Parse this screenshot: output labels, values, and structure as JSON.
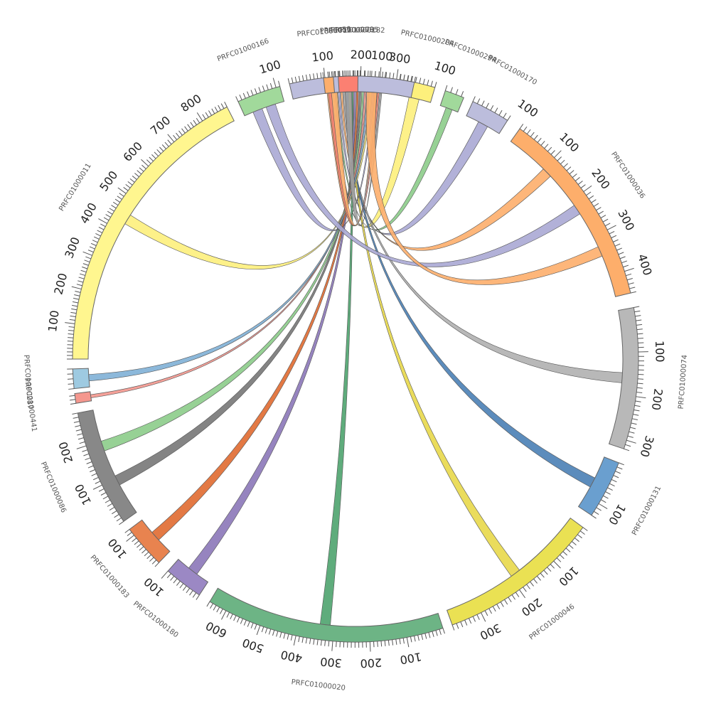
{
  "diagram": {
    "type": "circos",
    "center": "PRFC01000182",
    "segments": [
      {
        "id": "PRFC01000182",
        "label": "PRFC01000182",
        "color": "#9ecae1",
        "size": 110,
        "start_deg": -5.2,
        "end_deg": 6.0,
        "label_ticks": [
          100
        ]
      },
      {
        "id": "PRFC01000204",
        "label": "PRFC01000204",
        "color": "#fdf07c",
        "size": 90,
        "start_deg": 9.0,
        "end_deg": 16.3,
        "label_ticks": [
          100
        ]
      },
      {
        "id": "PRFC01000294",
        "label": "PRFC01000294",
        "color": "#a1d99b",
        "size": 35,
        "start_deg": 18.5,
        "end_deg": 22.5,
        "label_ticks": []
      },
      {
        "id": "PRFC01000170",
        "label": "PRFC01000170",
        "color": "#bcbddc",
        "size": 80,
        "start_deg": 24.5,
        "end_deg": 32.5,
        "label_ticks": [
          100
        ]
      },
      {
        "id": "PRFC01000036",
        "label": "PRFC01000036",
        "color": "#fdae6b",
        "size": 450,
        "start_deg": 35.5,
        "end_deg": 76.5,
        "label_ticks": [
          100,
          200,
          300,
          400
        ]
      },
      {
        "id": "PRFC01000074",
        "label": "PRFC01000074",
        "color": "#b8b8b8",
        "size": 320,
        "start_deg": 79.5,
        "end_deg": 108.5,
        "label_ticks": [
          100,
          200,
          300
        ]
      },
      {
        "id": "PRFC01000131",
        "label": "PRFC01000131",
        "color": "#6a9fcf",
        "size": 130,
        "start_deg": 111.5,
        "end_deg": 123.5,
        "label_ticks": [
          100
        ]
      },
      {
        "id": "PRFC01000046",
        "label": "PRFC01000046",
        "color": "#eae153",
        "size": 370,
        "start_deg": 126.5,
        "end_deg": 160.0,
        "label_ticks": [
          100,
          200,
          300
        ]
      },
      {
        "id": "PRFC01000020",
        "label": "PRFC01000020",
        "color": "#6db485",
        "size": 650,
        "start_deg": 162.0,
        "end_deg": 211.0,
        "label_ticks": [
          100,
          200,
          300,
          400,
          500,
          600
        ]
      },
      {
        "id": "PRFC01000180",
        "label": "PRFC01000180",
        "color": "#9b88c4",
        "size": 100,
        "start_deg": 213.5,
        "end_deg": 221.5,
        "label_ticks": [
          100
        ]
      },
      {
        "id": "PRFC01000183",
        "label": "PRFC01000183",
        "color": "#e8834f",
        "size": 120,
        "start_deg": 224.0,
        "end_deg": 233.0,
        "label_ticks": [
          100
        ]
      },
      {
        "id": "PRFC01000086",
        "label": "PRFC01000086",
        "color": "#888888",
        "size": 280,
        "start_deg": 235.0,
        "end_deg": 259.0,
        "label_ticks": [
          100,
          200
        ]
      },
      {
        "id": "PRFC01000441",
        "label": "PRFC01000441",
        "color": "#f4978e",
        "size": 25,
        "start_deg": 261.0,
        "end_deg": 263.0,
        "label_ticks": []
      },
      {
        "id": "PRFC01000287",
        "label": "PRFC01000287",
        "color": "#9ecae1",
        "size": 40,
        "start_deg": 264.0,
        "end_deg": 268.0,
        "label_ticks": []
      },
      {
        "id": "PRFC01000011",
        "label": "PRFC01000011",
        "color": "#fff68f",
        "size": 880,
        "start_deg": 270.0,
        "end_deg": 333.0,
        "label_ticks": [
          100,
          200,
          300,
          400,
          500,
          600,
          700,
          800
        ]
      },
      {
        "id": "PRFC01000166",
        "label": "PRFC01000166",
        "color": "#a1d99b",
        "size": 110,
        "start_deg": 335.5,
        "end_deg": 344.5,
        "label_ticks": [
          100
        ]
      },
      {
        "id": "PRFC01000065",
        "label": "PRFC01000065",
        "color": "#bcbddc",
        "size": 350,
        "start_deg": 346.5,
        "end_deg": 372.0,
        "label_ticks": [
          100,
          200,
          300
        ]
      },
      {
        "id": "PRFC01000450",
        "label": "PRFC01000450",
        "color": "#fdae6b",
        "size": 20,
        "start_deg": 353.5,
        "end_deg": 355.5,
        "label_ticks": []
      },
      {
        "id": "PRFC01000279",
        "label": "PRFC01000279",
        "color": "#fb8072",
        "size": 40,
        "start_deg": 356.5,
        "end_deg": 360.5,
        "label_ticks": []
      }
    ],
    "links": [
      {
        "source": "PRFC01000182",
        "target": "PRFC01000204",
        "color": "#fdf07c"
      },
      {
        "source": "PRFC01000182",
        "target": "PRFC01000294",
        "color": "#8ccc8a"
      },
      {
        "source": "PRFC01000182",
        "target": "PRFC01000170",
        "color": "#aaa8d4"
      },
      {
        "source": "PRFC01000182",
        "target": "PRFC01000036",
        "color": "#fdae6b"
      },
      {
        "source": "PRFC01000182",
        "target": "PRFC01000074",
        "color": "#b0b0b0"
      },
      {
        "source": "PRFC01000182",
        "target": "PRFC01000131",
        "color": "#4a7fb5"
      },
      {
        "source": "PRFC01000182",
        "target": "PRFC01000046",
        "color": "#e8d84a"
      },
      {
        "source": "PRFC01000182",
        "target": "PRFC01000020",
        "color": "#4ea36e"
      },
      {
        "source": "PRFC01000182",
        "target": "PRFC01000180",
        "color": "#8b77b8"
      },
      {
        "source": "PRFC01000182",
        "target": "PRFC01000183",
        "color": "#e06a30"
      },
      {
        "source": "PRFC01000182",
        "target": "PRFC01000086",
        "color": "#777777"
      },
      {
        "source": "PRFC01000182",
        "target": "PRFC01000086",
        "color": "#8ccc8a"
      },
      {
        "source": "PRFC01000182",
        "target": "PRFC01000441",
        "color": "#f4978e"
      },
      {
        "source": "PRFC01000182",
        "target": "PRFC01000287",
        "color": "#7fb0d6"
      },
      {
        "source": "PRFC01000182",
        "target": "PRFC01000011",
        "color": "#fdf07c"
      },
      {
        "source": "PRFC01000182",
        "target": "PRFC01000166",
        "color": "#aaa8d4"
      },
      {
        "source": "PRFC01000182",
        "target": "PRFC01000065",
        "color": "#fdae6b"
      },
      {
        "source": "PRFC01000182",
        "target": "PRFC01000450",
        "color": "#f08070"
      },
      {
        "source": "PRFC01000182",
        "target": "PRFC01000279",
        "color": "#a0a0a0"
      },
      {
        "source": "PRFC01000166",
        "target": "PRFC01000036",
        "color": "#aaa8d4"
      },
      {
        "source": "PRFC01000065",
        "target": "PRFC01000036",
        "color": "#fdae6b"
      }
    ]
  }
}
